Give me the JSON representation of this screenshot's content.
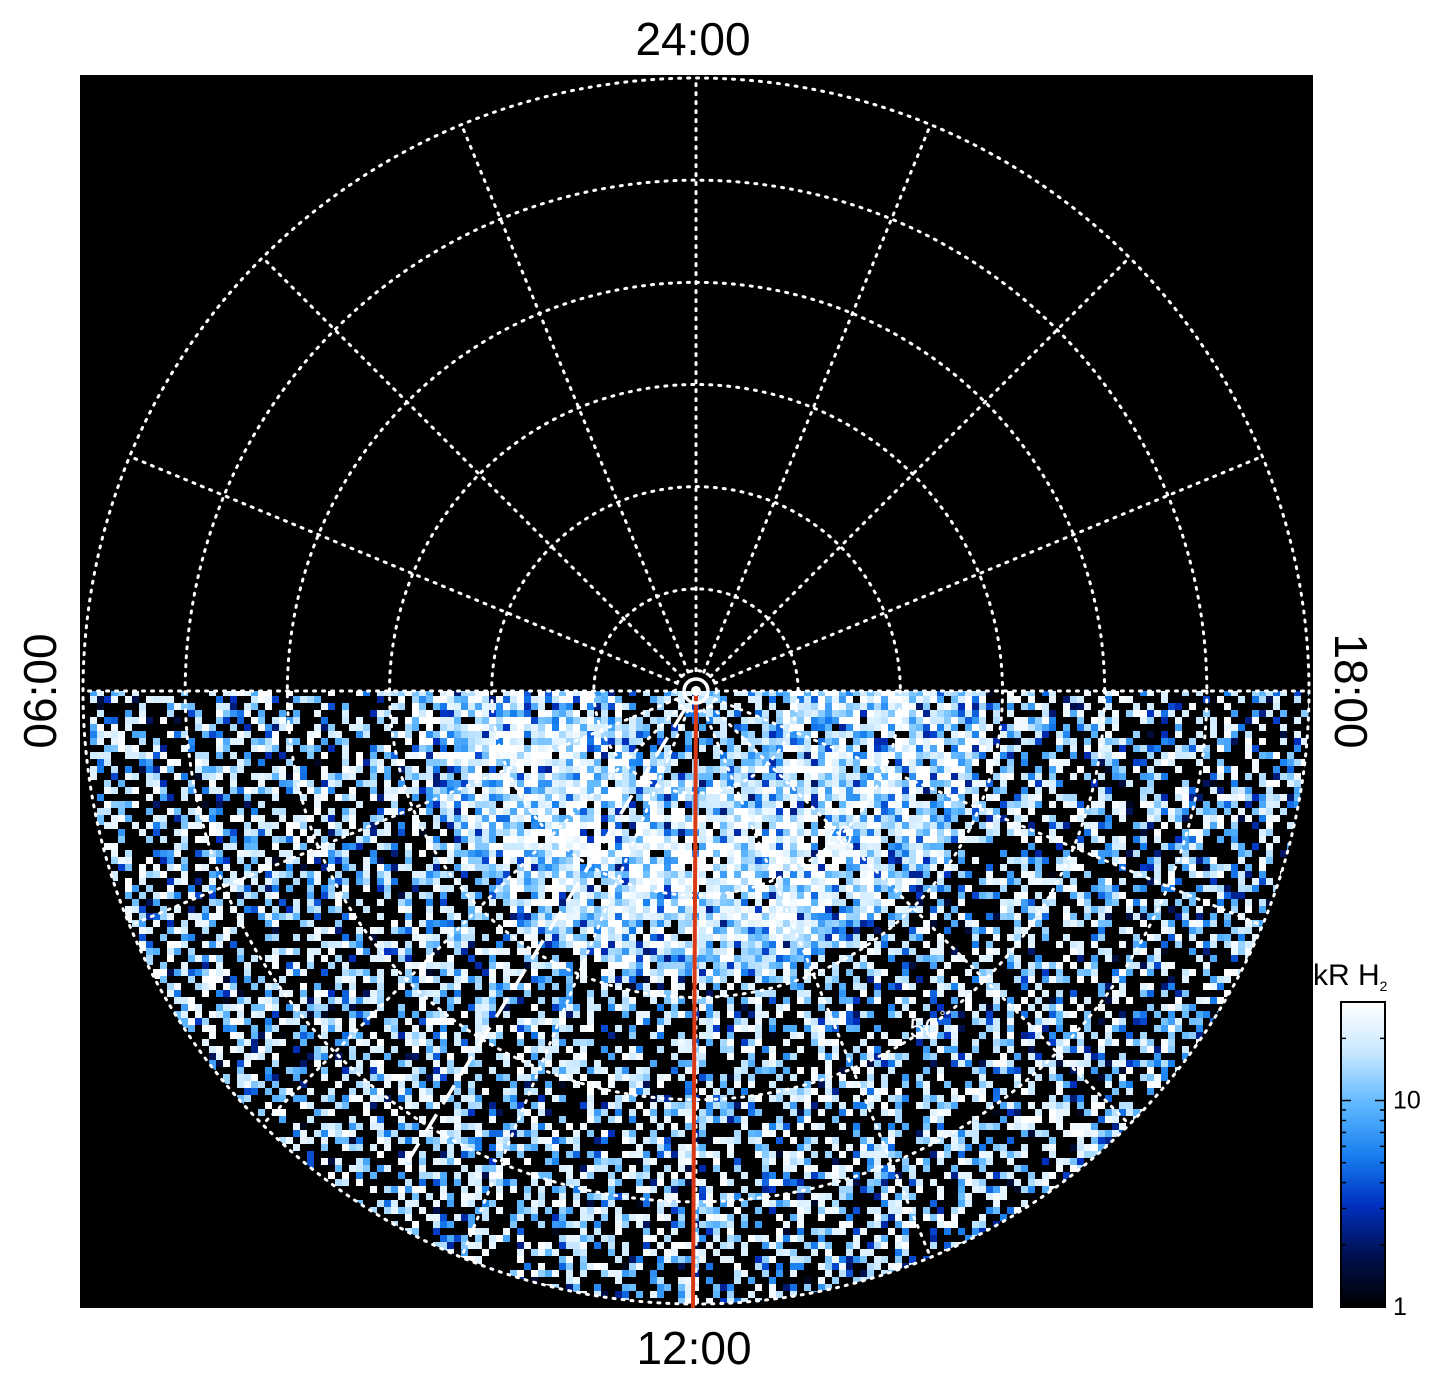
{
  "chart_data": {
    "type": "heatmap",
    "projection": "polar",
    "local_time_labels": {
      "top": "24:00",
      "bottom": "12:00",
      "left": "06:00",
      "right": "18:00"
    },
    "meridian_hours": [
      0,
      1.5,
      3,
      4.5,
      6,
      7.5,
      9,
      10.5,
      12,
      13.5,
      15,
      16.5,
      18,
      19.5,
      21,
      22.5
    ],
    "colatitude_circles_deg": [
      2,
      10,
      20,
      30,
      40,
      50,
      60
    ],
    "lat_labels": [
      {
        "text": "70",
        "unit": "°",
        "latitude": 70,
        "local_time": 15
      },
      {
        "text": "50",
        "unit": "°",
        "latitude": 50,
        "local_time": 14.3
      }
    ],
    "colatitude_max_deg": 60,
    "imaged_region": "dayside hemisphere (06:00 through 12:00 to 18:00)",
    "auroral_oval": {
      "colatitude_range_deg": [
        8,
        28
      ],
      "brightest_kR": 30,
      "description": "bright arc of emission spanning dawn to dusk"
    },
    "red_line_local_time": "12:00",
    "red_line_color": "#d93a16",
    "dashed_line_local_time_hours": 9.9,
    "colorbar": {
      "title_main": "kR H",
      "title_subscript": "2",
      "scale": "log",
      "range_kR": [
        1,
        30
      ],
      "tick_labels": [
        {
          "text": "1",
          "value": 1
        },
        {
          "text": "10",
          "value": 10
        }
      ],
      "colors": [
        "#000000",
        "#00104f",
        "#0030c0",
        "#1880f0",
        "#60b8ff",
        "#c8e8ff",
        "#ffffff"
      ]
    },
    "grid": "dotted white",
    "background": "#000000"
  }
}
